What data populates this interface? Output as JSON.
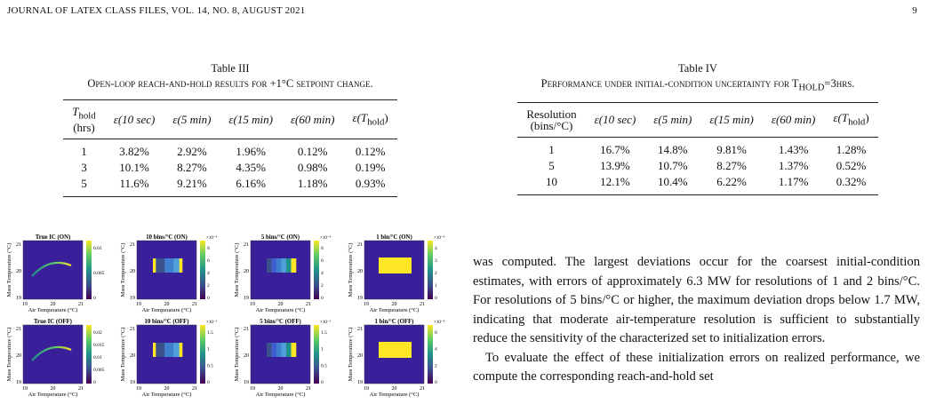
{
  "header": {
    "journal": "JOURNAL OF LATEX CLASS FILES, VOL. 14, NO. 8, AUGUST 2021",
    "page_number": "9"
  },
  "table3": {
    "title": "Table III",
    "caption": "Open-loop reach-and-hold results for +1°C setpoint change.",
    "col1_main": "T",
    "col1_sub": "hold",
    "col1_unit": "(hrs)",
    "columns": [
      "ε(10 sec)",
      "ε(5 min)",
      "ε(15 min)",
      "ε(60 min)",
      "ε(T",
      "hold",
      ")"
    ],
    "rows": [
      [
        "1",
        "3.82%",
        "2.92%",
        "1.96%",
        "0.12%",
        "0.12%"
      ],
      [
        "3",
        "10.1%",
        "8.27%",
        "4.35%",
        "0.98%",
        "0.19%"
      ],
      [
        "5",
        "11.6%",
        "9.21%",
        "6.16%",
        "1.18%",
        "0.93%"
      ]
    ]
  },
  "table4": {
    "title": "Table IV",
    "caption": "Performance under initial-condition uncertainty for T",
    "caption_sub": "HOLD",
    "caption_end": "=3hrs.",
    "col1_line1": "Resolution",
    "col1_line2": "(bins/°C)",
    "columns": [
      "ε(10 sec)",
      "ε(5 min)",
      "ε(15 min)",
      "ε(60 min)",
      "ε(T",
      "hold",
      ")"
    ],
    "rows": [
      [
        "1",
        "16.7%",
        "14.8%",
        "9.81%",
        "1.43%",
        "1.28%"
      ],
      [
        "5",
        "13.9%",
        "10.7%",
        "8.27%",
        "1.37%",
        "0.52%"
      ],
      [
        "10",
        "12.1%",
        "10.4%",
        "6.22%",
        "1.17%",
        "0.32%"
      ]
    ]
  },
  "figure": {
    "ylabel": "Mass Temperature (°C)",
    "xlabel": "Air Temperature (°C)",
    "x_ticks": [
      "19",
      "20",
      "21"
    ],
    "y_ticks": [
      "19",
      "20",
      "21"
    ],
    "panels": [
      {
        "title": "True IC (ON)",
        "cb_exp": "",
        "cb_ticks": [
          "0.01",
          "0.005",
          "0"
        ],
        "kind": "curve"
      },
      {
        "title": "10 bins/°C (ON)",
        "cb_exp": "×10⁻⁴",
        "cb_ticks": [
          "8",
          "6",
          "4",
          "2",
          "0"
        ],
        "kind": "bins10"
      },
      {
        "title": "5 bins/°C (ON)",
        "cb_exp": "×10⁻⁴",
        "cb_ticks": [
          "8",
          "6",
          "4",
          "2",
          "0"
        ],
        "kind": "bins5"
      },
      {
        "title": "1 bin/°C (ON)",
        "cb_exp": "×10⁻⁴",
        "cb_ticks": [
          "4",
          "3",
          "2",
          "1",
          "0"
        ],
        "kind": "bins1"
      },
      {
        "title": "True IC (OFF)",
        "cb_exp": "",
        "cb_ticks": [
          "0.02",
          "0.015",
          "0.01",
          "0.005",
          "0"
        ],
        "kind": "curve"
      },
      {
        "title": "10 bins/°C (OFF)",
        "cb_exp": "×10⁻³",
        "cb_ticks": [
          "1.5",
          "1",
          "0.5",
          "0"
        ],
        "kind": "bins10"
      },
      {
        "title": "5 bins/°C (OFF)",
        "cb_exp": "×10⁻³",
        "cb_ticks": [
          "1.5",
          "1",
          "0.5",
          "0"
        ],
        "kind": "bins5"
      },
      {
        "title": "1 bin/°C (OFF)",
        "cb_exp": "×10⁻⁴",
        "cb_ticks": [
          "6",
          "4",
          "2",
          "0"
        ],
        "kind": "bins1"
      }
    ]
  },
  "body_text": {
    "p1": "was computed. The largest deviations occur for the coarsest initial-condition estimates, with errors of approximately 6.3 MW for resolutions of 1 and 2 bins/°C. For resolutions of 5 bins/°C or higher, the maximum deviation drops below 1.7 MW, indicating that moderate air-temperature resolution is sufficient to substantially reduce the sensitivity of the characterized set to initialization errors.",
    "p2": "To evaluate the effect of these initialization errors on realized performance, we compute the corresponding reach-and-hold set"
  },
  "colors": {
    "heatmap_bg": "#3a1f9a",
    "viridis": [
      "#440154",
      "#3b528b",
      "#21918c",
      "#5ec962",
      "#fde725"
    ]
  }
}
